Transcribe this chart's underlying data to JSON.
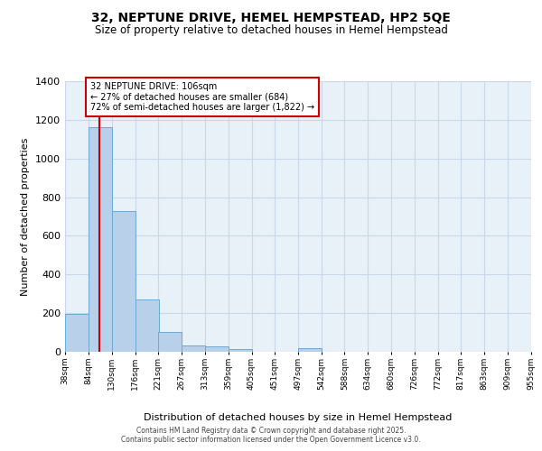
{
  "title": "32, NEPTUNE DRIVE, HEMEL HEMPSTEAD, HP2 5QE",
  "subtitle": "Size of property relative to detached houses in Hemel Hempstead",
  "xlabel": "Distribution of detached houses by size in Hemel Hempstead",
  "ylabel": "Number of detached properties",
  "footer_line1": "Contains HM Land Registry data © Crown copyright and database right 2025.",
  "footer_line2": "Contains public sector information licensed under the Open Government Licence v3.0.",
  "bins": [
    38,
    84,
    130,
    176,
    221,
    267,
    313,
    359,
    405,
    451,
    497,
    542,
    588,
    634,
    680,
    726,
    772,
    817,
    863,
    909,
    955
  ],
  "bar_heights": [
    196,
    1160,
    726,
    270,
    105,
    35,
    27,
    13,
    0,
    0,
    17,
    0,
    0,
    0,
    0,
    0,
    0,
    0,
    0,
    0
  ],
  "bar_color": "#b8d0ea",
  "bar_edge_color": "#6aaad4",
  "grid_color": "#c8d8e8",
  "background_color": "#e8f0f8",
  "annotation_text": "32 NEPTUNE DRIVE: 106sqm\n← 27% of detached houses are smaller (684)\n72% of semi-detached houses are larger (1,822) →",
  "vline_x": 106,
  "vline_color": "#cc0000",
  "ylim": [
    0,
    1400
  ],
  "yticks": [
    0,
    200,
    400,
    600,
    800,
    1000,
    1200,
    1400
  ],
  "bin_labels": [
    "38sqm",
    "84sqm",
    "130sqm",
    "176sqm",
    "221sqm",
    "267sqm",
    "313sqm",
    "359sqm",
    "405sqm",
    "451sqm",
    "497sqm",
    "542sqm",
    "588sqm",
    "634sqm",
    "680sqm",
    "726sqm",
    "772sqm",
    "817sqm",
    "863sqm",
    "909sqm",
    "955sqm"
  ]
}
